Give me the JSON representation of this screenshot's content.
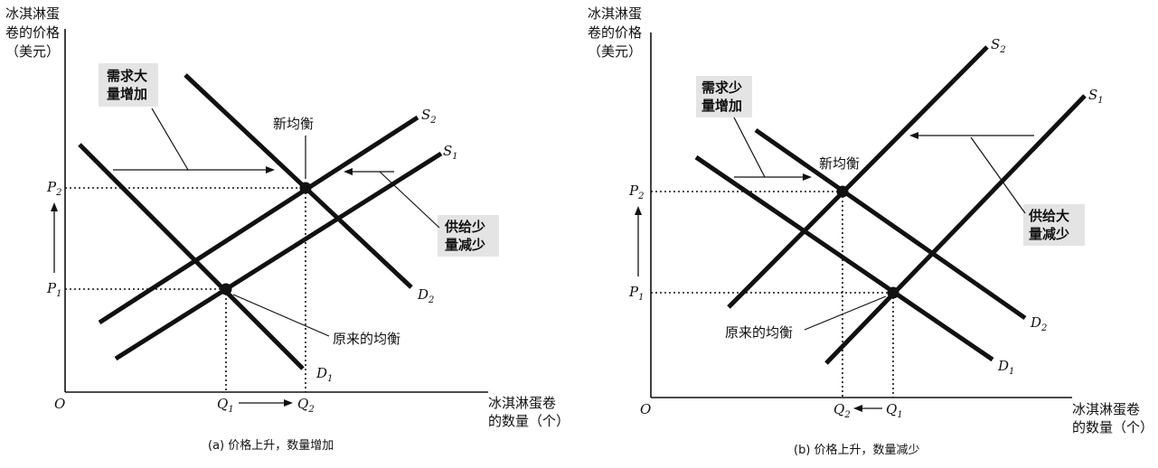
{
  "panel_a": {
    "ylabel": [
      "冰淇淋蛋",
      "卷的价格",
      "（美元）"
    ],
    "xlabel": [
      "冰淇淋蛋卷",
      "的数量（个）"
    ],
    "origin": "O",
    "demand_note": [
      "需求大",
      "量增加"
    ],
    "supply_note": [
      "供给少",
      "量减少"
    ],
    "new_eq": "新均衡",
    "old_eq": "原来的均衡",
    "caption": "(a) 价格上升，数量增加",
    "p1": "P",
    "p1_sub": "1",
    "p2": "P",
    "p2_sub": "2",
    "q1": "Q",
    "q1_sub": "1",
    "q2": "Q",
    "q2_sub": "2",
    "s1": "S",
    "s1_sub": "1",
    "s2": "S",
    "s2_sub": "2",
    "d1": "D",
    "d1_sub": "1",
    "d2": "D",
    "d2_sub": "2"
  },
  "panel_b": {
    "ylabel": [
      "冰淇淋蛋",
      "卷的价格",
      "（美元）"
    ],
    "xlabel": [
      "冰淇淋蛋卷",
      "的数量（个）"
    ],
    "origin": "O",
    "demand_note": [
      "需求少",
      "量增加"
    ],
    "supply_note": [
      "供给大",
      "量减少"
    ],
    "new_eq": "新均衡",
    "old_eq": "原来的均衡",
    "caption": "(b) 价格上升，数量减少",
    "p1": "P",
    "p1_sub": "1",
    "p2": "P",
    "p2_sub": "2",
    "q1": "Q",
    "q1_sub": "1",
    "q2": "Q",
    "q2_sub": "2",
    "s1": "S",
    "s1_sub": "1",
    "s2": "S",
    "s2_sub": "2",
    "d1": "D",
    "d1_sub": "1",
    "d2": "D",
    "d2_sub": "2"
  }
}
